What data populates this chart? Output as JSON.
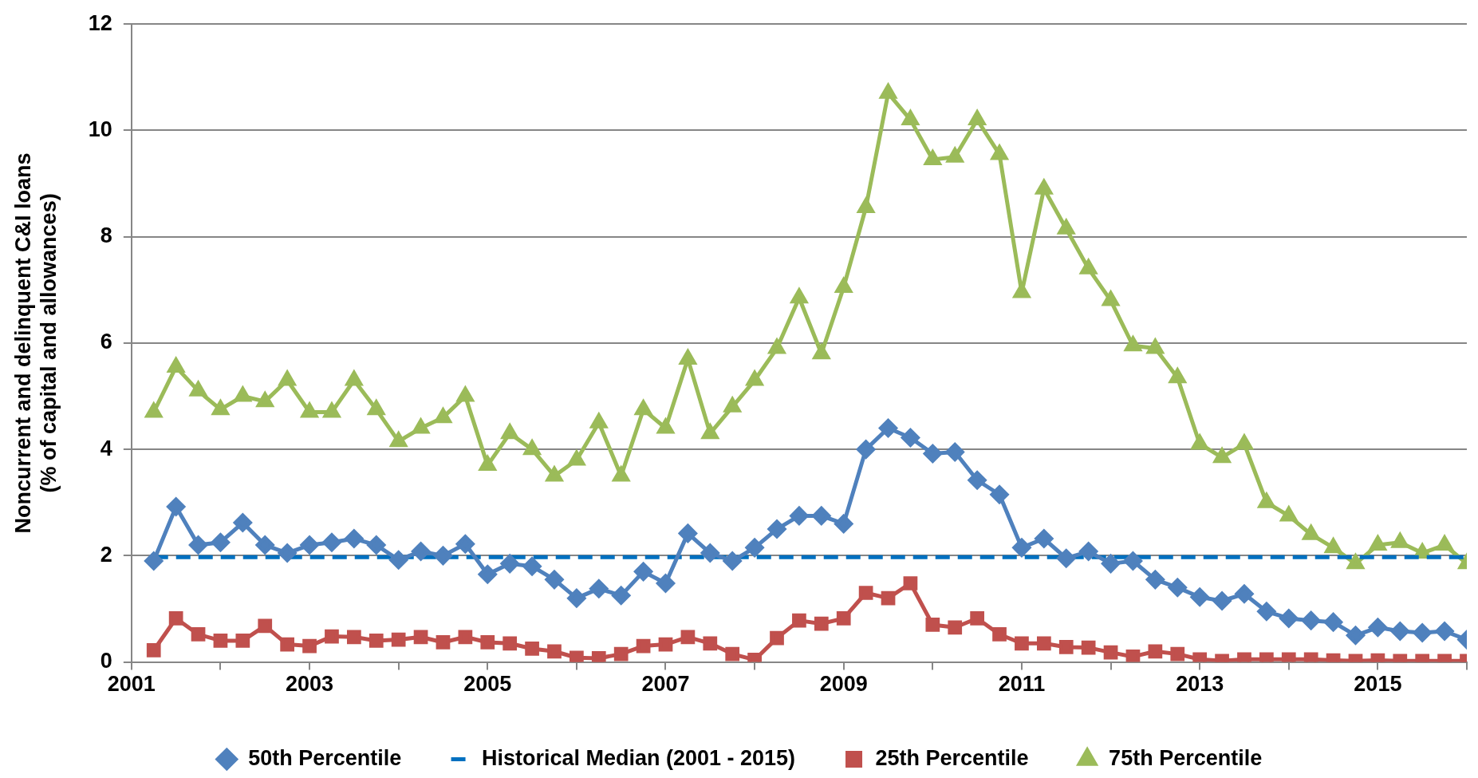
{
  "chart_data": {
    "type": "line",
    "ylabel": "Noncurrent and delinquent C&I loans\n(% of capital and allowances)",
    "xlim": [
      2001,
      2016
    ],
    "xticks": [
      2001,
      {
        "value": 2002,
        "label": null
      },
      2003,
      {
        "value": 2004,
        "label": null
      },
      2005,
      {
        "value": 2006,
        "label": null
      },
      2007,
      {
        "value": 2008,
        "label": null
      },
      2009,
      {
        "value": 2010,
        "label": null
      },
      2011,
      {
        "value": 2012,
        "label": null
      },
      2013,
      {
        "value": 2014,
        "label": null
      },
      2015,
      {
        "value": 2016,
        "label": null
      }
    ],
    "ylim": [
      0,
      12
    ],
    "yticks": [
      0,
      2,
      4,
      6,
      8,
      10,
      12
    ],
    "grid": "y",
    "legend": "bottom",
    "x": [
      2001.25,
      2001.5,
      2001.75,
      2002,
      2002.25,
      2002.5,
      2002.75,
      2003,
      2003.25,
      2003.5,
      2003.75,
      2004,
      2004.25,
      2004.5,
      2004.75,
      2005,
      2005.25,
      2005.5,
      2005.75,
      2006,
      2006.25,
      2006.5,
      2006.75,
      2007,
      2007.25,
      2007.5,
      2007.75,
      2008,
      2008.25,
      2008.5,
      2008.75,
      2009,
      2009.25,
      2009.5,
      2009.75,
      2010,
      2010.25,
      2010.5,
      2010.75,
      2011,
      2011.25,
      2011.5,
      2011.75,
      2012,
      2012.25,
      2012.5,
      2012.75,
      2013,
      2013.25,
      2013.5,
      2013.75,
      2014,
      2014.25,
      2014.5,
      2014.75,
      2015,
      2015.25,
      2015.5,
      2015.75,
      2016
    ],
    "series": [
      {
        "name": "50th Percentile",
        "color": "#4f81bd",
        "marker": "diamond",
        "values": [
          1.9,
          2.92,
          2.2,
          2.25,
          2.62,
          2.2,
          2.05,
          2.2,
          2.25,
          2.32,
          2.2,
          1.92,
          2.08,
          2.0,
          2.22,
          1.65,
          1.85,
          1.8,
          1.55,
          1.2,
          1.38,
          1.25,
          1.7,
          1.48,
          2.42,
          2.05,
          1.9,
          2.15,
          2.5,
          2.75,
          2.75,
          2.6,
          4.0,
          4.4,
          4.22,
          3.92,
          3.95,
          3.42,
          3.15,
          2.15,
          2.32,
          1.95,
          2.08,
          1.85,
          1.9,
          1.55,
          1.4,
          1.22,
          1.15,
          1.28,
          0.95,
          0.82,
          0.78,
          0.75,
          0.5,
          0.65,
          0.58,
          0.55,
          0.58,
          0.42
        ]
      },
      {
        "name": "Historical Median (2001 - 2015)",
        "color": "#0070c0",
        "marker": "none",
        "line_style": "dashed",
        "x": [
          2001.25,
          2016
        ],
        "values": [
          1.97,
          1.97
        ]
      },
      {
        "name": "25th Percentile",
        "color": "#c0504d",
        "marker": "square",
        "values": [
          0.22,
          0.82,
          0.52,
          0.4,
          0.4,
          0.68,
          0.33,
          0.3,
          0.48,
          0.47,
          0.4,
          0.42,
          0.47,
          0.37,
          0.47,
          0.37,
          0.35,
          0.25,
          0.2,
          0.08,
          0.07,
          0.15,
          0.3,
          0.33,
          0.47,
          0.35,
          0.15,
          0.04,
          0.45,
          0.78,
          0.72,
          0.82,
          1.3,
          1.2,
          1.48,
          0.7,
          0.65,
          0.82,
          0.52,
          0.35,
          0.35,
          0.28,
          0.27,
          0.18,
          0.1,
          0.2,
          0.15,
          0.05,
          0.02,
          0.05,
          0.05,
          0.05,
          0.05,
          0.03,
          0.02,
          0.03,
          0.02,
          0.02,
          0.02,
          0.02
        ]
      },
      {
        "name": "75th Percentile",
        "color": "#9bbb59",
        "marker": "triangle",
        "values": [
          4.7,
          5.55,
          5.1,
          4.75,
          5.0,
          4.9,
          5.3,
          4.7,
          4.7,
          5.3,
          4.75,
          4.15,
          4.4,
          4.6,
          5.0,
          3.7,
          4.3,
          4.0,
          3.5,
          3.8,
          4.5,
          3.5,
          4.75,
          4.4,
          5.7,
          4.3,
          4.8,
          5.3,
          5.9,
          6.85,
          5.8,
          7.05,
          8.55,
          10.7,
          10.2,
          9.45,
          9.5,
          10.2,
          9.55,
          6.95,
          8.9,
          8.15,
          7.4,
          6.8,
          5.95,
          5.9,
          5.35,
          4.1,
          3.85,
          4.1,
          3.0,
          2.75,
          2.4,
          2.15,
          1.85,
          2.2,
          2.25,
          2.05,
          2.2,
          1.85
        ]
      }
    ]
  }
}
